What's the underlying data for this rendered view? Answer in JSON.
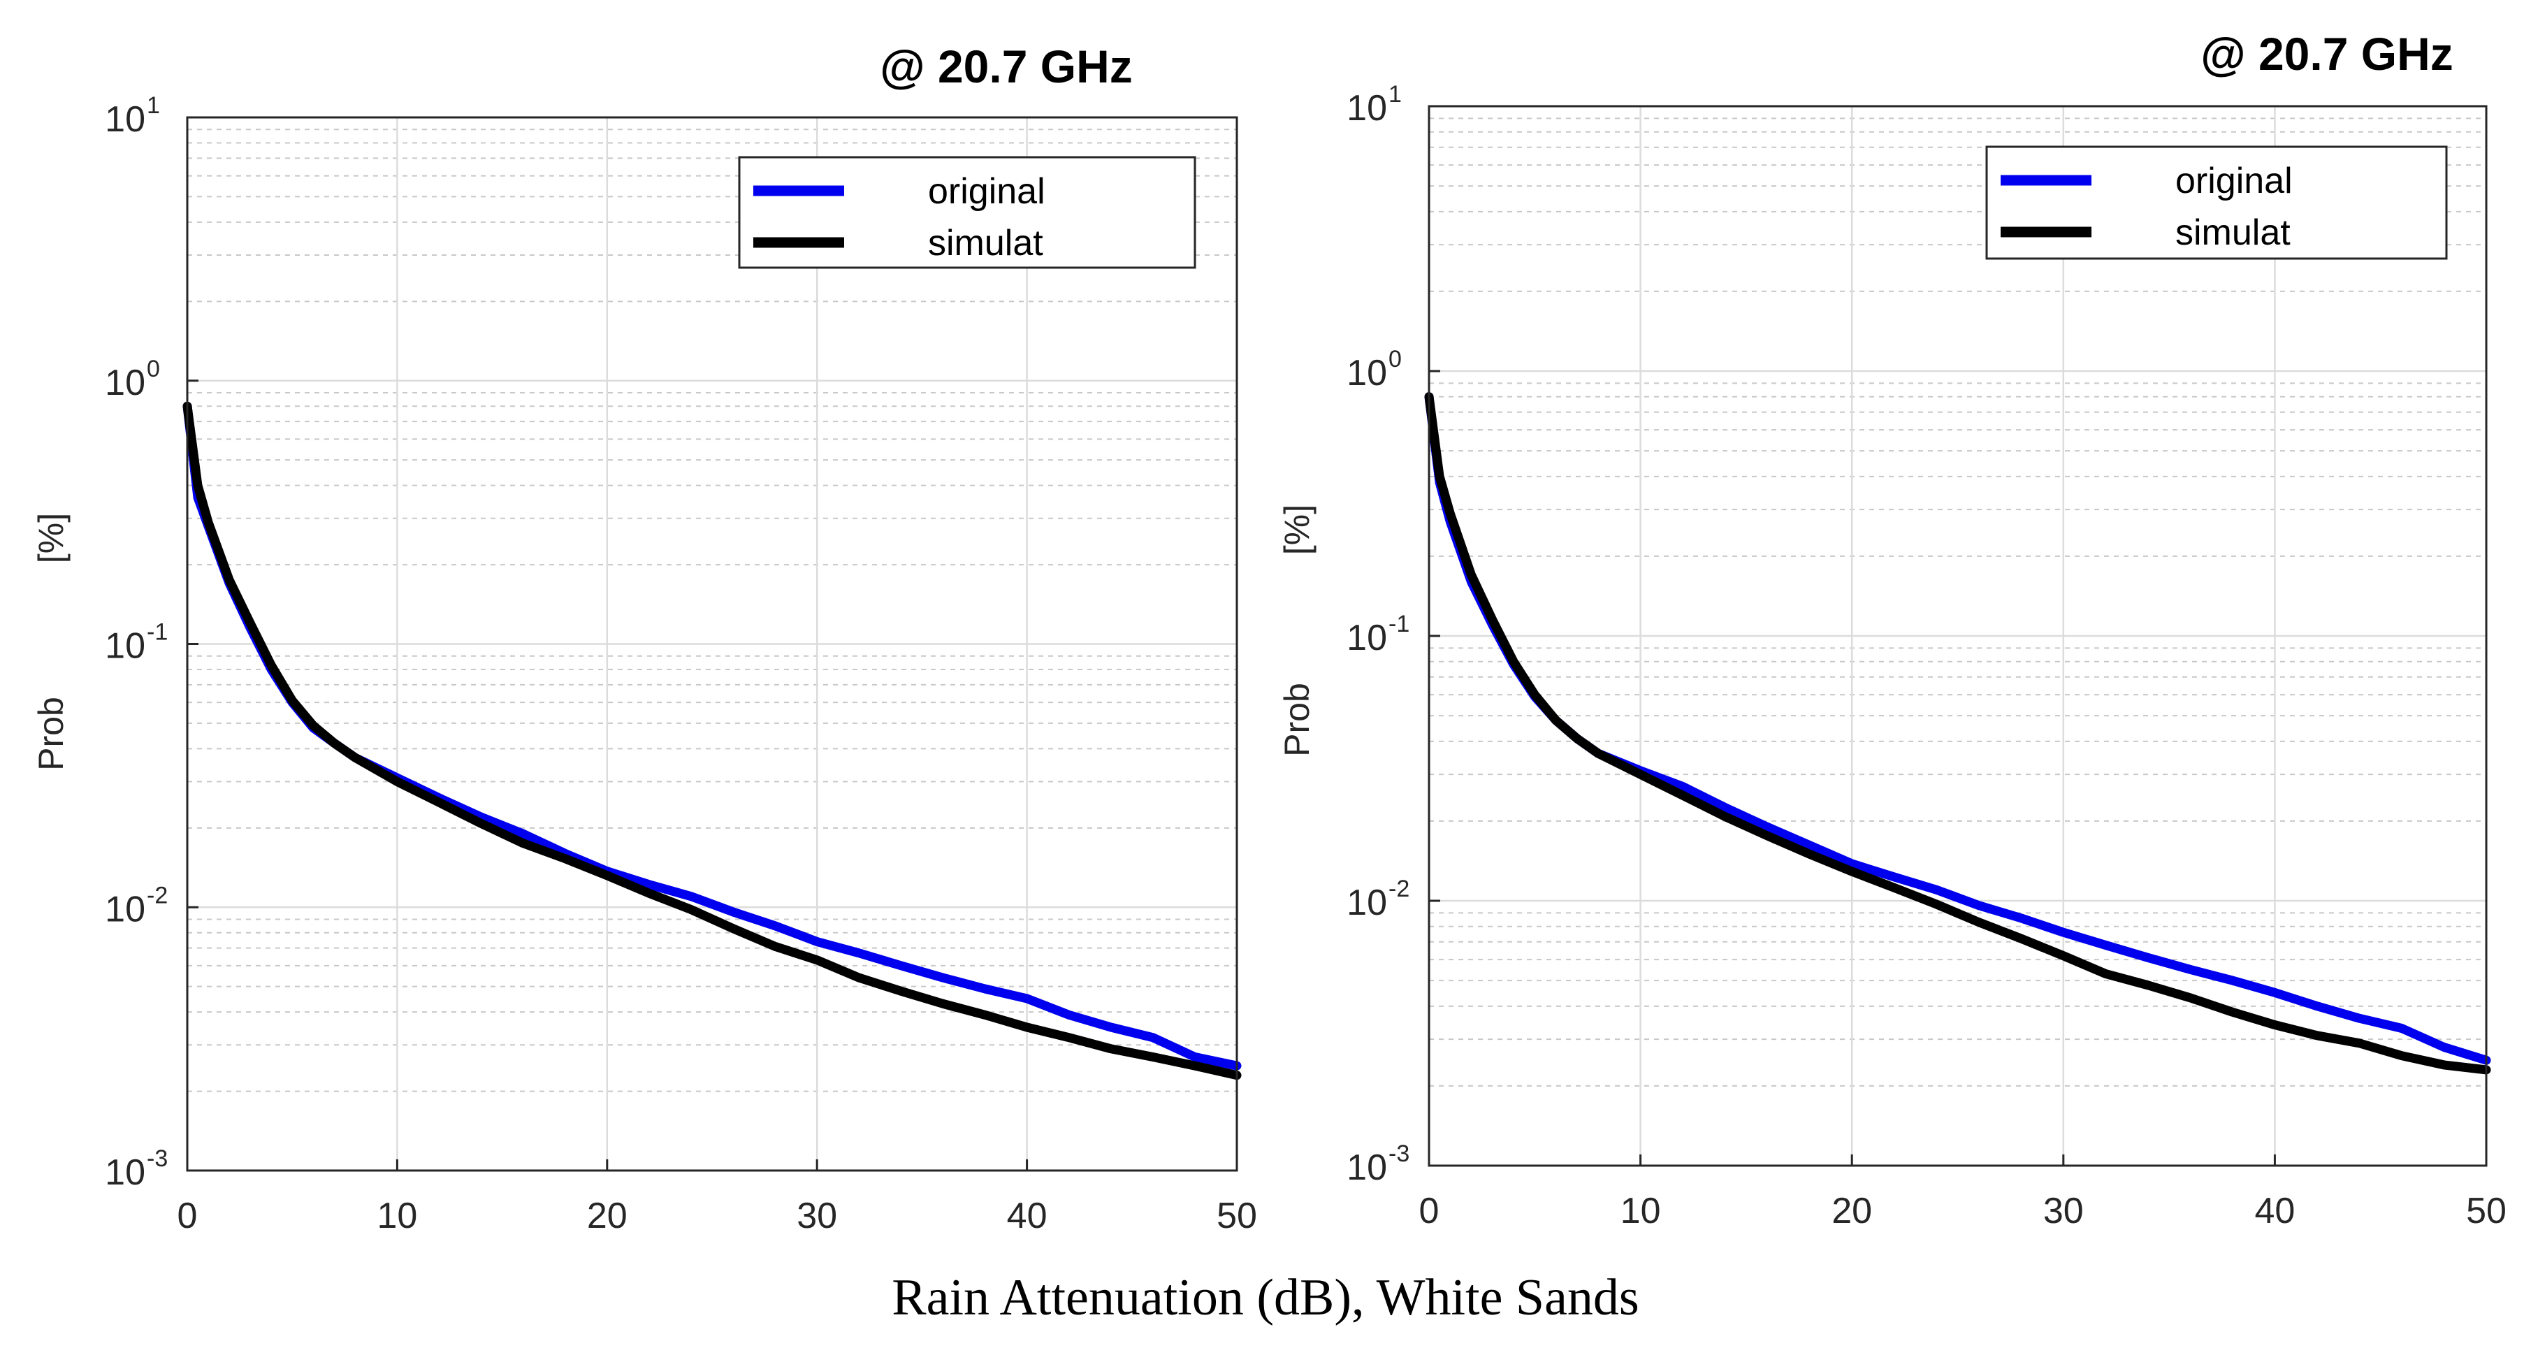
{
  "caption": "Rain Attenuation (dB), White Sands",
  "colors": {
    "original": "#0000ee",
    "simulat": "#000000",
    "grid_major": "#dcdcdc",
    "grid_minor": "#c8c8c8",
    "axes": "#262626"
  },
  "chart_data": [
    {
      "type": "line",
      "title": "@ 20.7 GHz",
      "xlabel": "",
      "ylabel_parts": [
        "Prob",
        "[%]"
      ],
      "xscale": "linear",
      "yscale": "log",
      "xlim": [
        0,
        50
      ],
      "ylim": [
        0.001,
        10
      ],
      "xticks": [
        0,
        10,
        20,
        30,
        40,
        50
      ],
      "yticks": [
        {
          "base": "10",
          "exp": "-3",
          "value": 0.001
        },
        {
          "base": "10",
          "exp": "-2",
          "value": 0.01
        },
        {
          "base": "10",
          "exp": "-1",
          "value": 0.1
        },
        {
          "base": "10",
          "exp": "0",
          "value": 1
        },
        {
          "base": "10",
          "exp": "1",
          "value": 10
        }
      ],
      "grid": true,
      "legend_position": "top-right",
      "series": [
        {
          "name": "original",
          "x": [
            0,
            0.5,
            1,
            2,
            3,
            4,
            5,
            6,
            7,
            8,
            10,
            12,
            14,
            16,
            18,
            20,
            22,
            24,
            26,
            28,
            30,
            32,
            34,
            36,
            38,
            40,
            42,
            44,
            46,
            48,
            50
          ],
          "y": [
            0.8,
            0.36,
            0.28,
            0.17,
            0.115,
            0.08,
            0.06,
            0.048,
            0.042,
            0.037,
            0.031,
            0.026,
            0.022,
            0.019,
            0.016,
            0.0137,
            0.0122,
            0.011,
            0.0096,
            0.0085,
            0.0074,
            0.0067,
            0.006,
            0.0054,
            0.0049,
            0.0045,
            0.0039,
            0.0035,
            0.0032,
            0.0027,
            0.0025
          ]
        },
        {
          "name": "simulat",
          "x": [
            0,
            0.5,
            1,
            2,
            3,
            4,
            5,
            6,
            7,
            8,
            10,
            12,
            14,
            16,
            18,
            20,
            22,
            24,
            26,
            28,
            30,
            32,
            34,
            36,
            38,
            40,
            42,
            44,
            46,
            48,
            50
          ],
          "y": [
            0.8,
            0.4,
            0.29,
            0.175,
            0.12,
            0.083,
            0.061,
            0.049,
            0.042,
            0.037,
            0.03,
            0.025,
            0.0208,
            0.0175,
            0.0153,
            0.0132,
            0.0113,
            0.0098,
            0.0083,
            0.0071,
            0.0063,
            0.0054,
            0.0048,
            0.0043,
            0.0039,
            0.0035,
            0.0032,
            0.0029,
            0.0027,
            0.0025,
            0.0023
          ]
        }
      ]
    },
    {
      "type": "line",
      "title": "@ 20.7 GHz",
      "xlabel": "",
      "ylabel_parts": [
        "Prob",
        "[%]"
      ],
      "xscale": "linear",
      "yscale": "log",
      "xlim": [
        0,
        50
      ],
      "ylim": [
        0.001,
        10
      ],
      "xticks": [
        0,
        10,
        20,
        30,
        40,
        50
      ],
      "yticks": [
        {
          "base": "10",
          "exp": "-3",
          "value": 0.001
        },
        {
          "base": "10",
          "exp": "-2",
          "value": 0.01
        },
        {
          "base": "10",
          "exp": "-1",
          "value": 0.1
        },
        {
          "base": "10",
          "exp": "0",
          "value": 1
        },
        {
          "base": "10",
          "exp": "1",
          "value": 10
        }
      ],
      "grid": true,
      "legend_position": "top-right",
      "series": [
        {
          "name": "original",
          "x": [
            0,
            0.5,
            1,
            2,
            3,
            4,
            5,
            6,
            7,
            8,
            10,
            12,
            14,
            16,
            18,
            20,
            22,
            24,
            26,
            28,
            30,
            32,
            34,
            36,
            38,
            40,
            42,
            44,
            46,
            48,
            50
          ],
          "y": [
            0.8,
            0.38,
            0.27,
            0.16,
            0.11,
            0.078,
            0.059,
            0.048,
            0.041,
            0.036,
            0.031,
            0.027,
            0.0225,
            0.019,
            0.0162,
            0.0138,
            0.0123,
            0.011,
            0.0096,
            0.0086,
            0.0076,
            0.0068,
            0.0061,
            0.0055,
            0.005,
            0.0045,
            0.004,
            0.0036,
            0.0033,
            0.0028,
            0.0025
          ]
        },
        {
          "name": "simulat",
          "x": [
            0,
            0.5,
            1,
            2,
            3,
            4,
            5,
            6,
            7,
            8,
            10,
            12,
            14,
            16,
            18,
            20,
            22,
            24,
            26,
            28,
            30,
            32,
            34,
            36,
            38,
            40,
            42,
            44,
            46,
            48,
            50
          ],
          "y": [
            0.8,
            0.4,
            0.29,
            0.17,
            0.115,
            0.08,
            0.06,
            0.048,
            0.041,
            0.036,
            0.03,
            0.025,
            0.0208,
            0.0176,
            0.015,
            0.0129,
            0.0112,
            0.0097,
            0.0083,
            0.0072,
            0.0062,
            0.0053,
            0.0048,
            0.0043,
            0.0038,
            0.0034,
            0.0031,
            0.0029,
            0.0026,
            0.0024,
            0.0023
          ]
        }
      ]
    }
  ]
}
